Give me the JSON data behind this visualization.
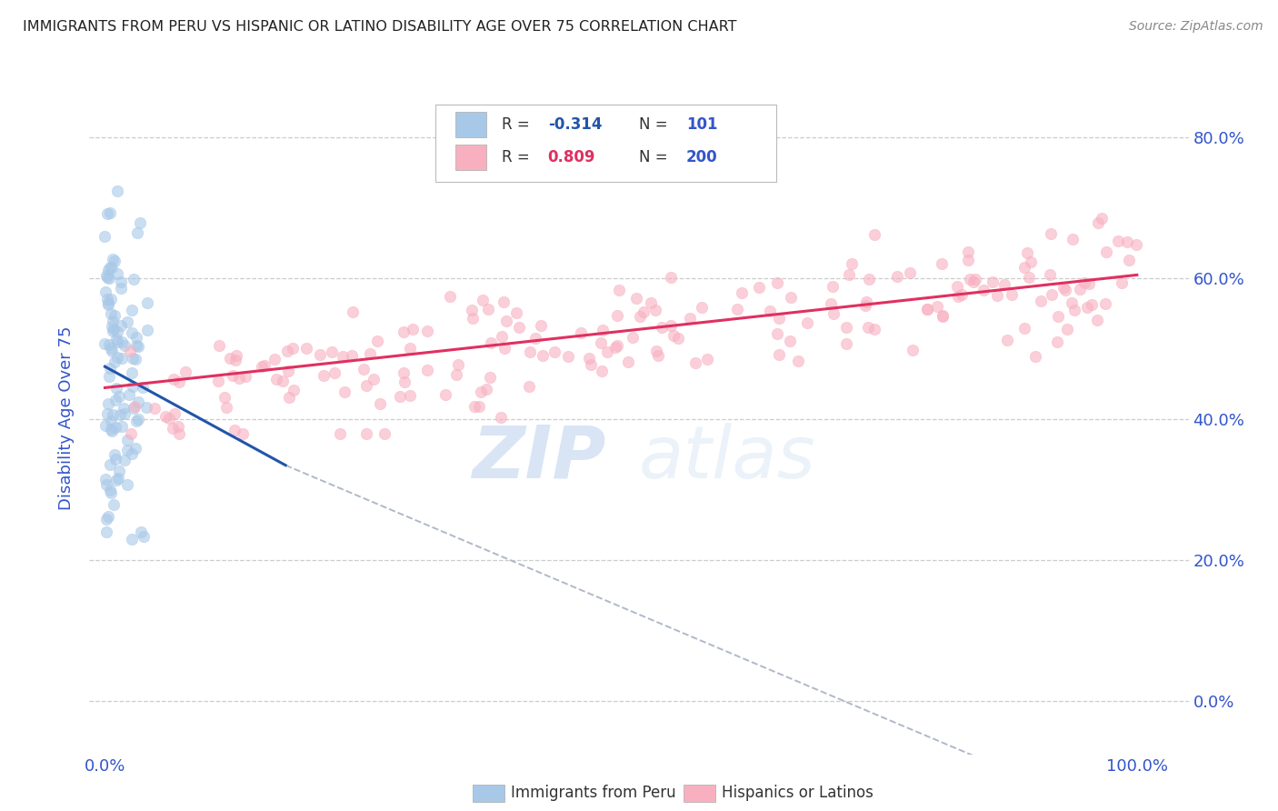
{
  "title": "IMMIGRANTS FROM PERU VS HISPANIC OR LATINO DISABILITY AGE OVER 75 CORRELATION CHART",
  "source": "Source: ZipAtlas.com",
  "ylabel": "Disability Age Over 75",
  "blue_R": -0.314,
  "blue_N": 101,
  "pink_R": 0.809,
  "pink_N": 200,
  "blue_color": "#a8c8e8",
  "blue_line_color": "#2255aa",
  "pink_color": "#f8b0c0",
  "pink_line_color": "#e03060",
  "dashed_line_color": "#b0b8c8",
  "watermark_zip": "ZIP",
  "watermark_atlas": "atlas",
  "legend_label_blue": "Immigrants from Peru",
  "legend_label_pink": "Hispanics or Latinos",
  "title_color": "#222222",
  "source_color": "#888888",
  "axis_label_color": "#3355cc",
  "grid_color": "#cccccc",
  "background_color": "#ffffff",
  "blue_line_x": [
    0.0,
    0.175
  ],
  "blue_line_y": [
    0.475,
    0.335
  ],
  "dashed_line_x": [
    0.175,
    1.0
  ],
  "dashed_line_y": [
    0.335,
    -0.175
  ],
  "pink_line_x": [
    0.0,
    1.0
  ],
  "pink_line_y": [
    0.445,
    0.605
  ],
  "xlim": [
    -0.015,
    1.05
  ],
  "ylim": [
    -0.075,
    0.88
  ],
  "yticks": [
    0.0,
    0.2,
    0.4,
    0.6,
    0.8
  ],
  "yticklabels_right": [
    "0.0%",
    "20.0%",
    "40.0%",
    "60.0%",
    "80.0%"
  ],
  "xticks": [
    0.0,
    1.0
  ],
  "xticklabels": [
    "0.0%",
    "100.0%"
  ],
  "figsize": [
    14.06,
    8.92
  ],
  "dpi": 100
}
